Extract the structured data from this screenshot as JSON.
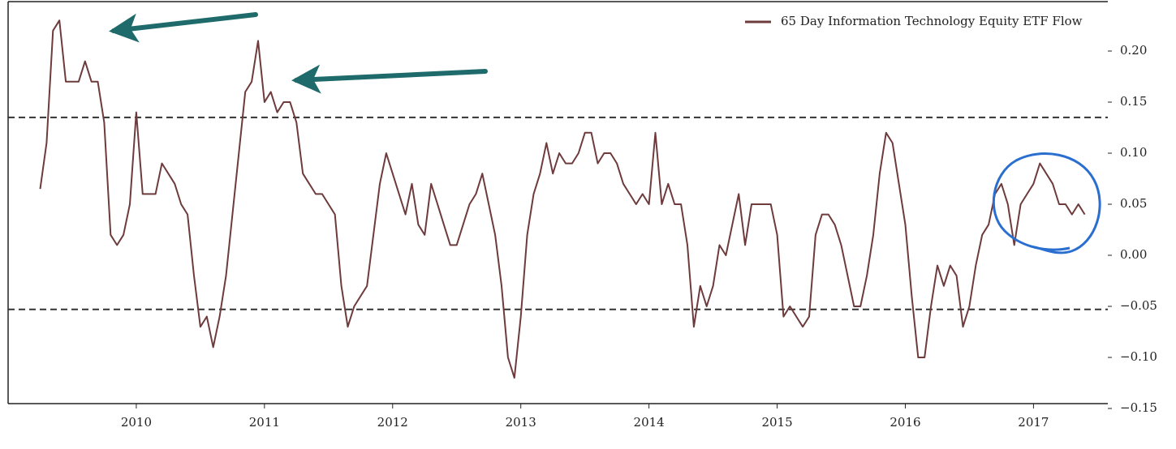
{
  "chart_data": {
    "type": "line",
    "xlim": [
      2009.0,
      2017.58
    ],
    "xticks": [
      2010,
      2011,
      2012,
      2013,
      2014,
      2015,
      2016,
      2017
    ],
    "ylim": [
      -0.15,
      0.25
    ],
    "yticks": [
      {
        "value": -0.15,
        "label": "−0.15"
      },
      {
        "value": -0.1,
        "label": "−0.10"
      },
      {
        "value": -0.05,
        "label": "−0.05"
      },
      {
        "value": 0,
        "label": "0.00"
      },
      {
        "value": 0.05,
        "label": "0.05"
      },
      {
        "value": 0.1,
        "label": "0.10"
      },
      {
        "value": 0.15,
        "label": "0.15"
      },
      {
        "value": 0.2,
        "label": "0.20"
      }
    ],
    "hlines": [
      0.135,
      -0.053
    ],
    "legend": "upper right",
    "series": [
      {
        "name": "65 Day Information Technology Equity ETF Flow",
        "color": "#6e3b3d",
        "x": [
          2009.25,
          2009.3,
          2009.35,
          2009.4,
          2009.45,
          2009.5,
          2009.55,
          2009.6,
          2009.65,
          2009.7,
          2009.75,
          2009.8,
          2009.85,
          2009.9,
          2009.95,
          2010.0,
          2010.05,
          2010.1,
          2010.15,
          2010.2,
          2010.25,
          2010.3,
          2010.35,
          2010.4,
          2010.45,
          2010.5,
          2010.55,
          2010.6,
          2010.65,
          2010.7,
          2010.75,
          2010.8,
          2010.85,
          2010.9,
          2010.95,
          2011.0,
          2011.05,
          2011.1,
          2011.15,
          2011.2,
          2011.25,
          2011.3,
          2011.35,
          2011.4,
          2011.45,
          2011.5,
          2011.55,
          2011.6,
          2011.65,
          2011.7,
          2011.75,
          2011.8,
          2011.85,
          2011.9,
          2011.95,
          2012.0,
          2012.05,
          2012.1,
          2012.15,
          2012.2,
          2012.25,
          2012.3,
          2012.35,
          2012.4,
          2012.45,
          2012.5,
          2012.55,
          2012.6,
          2012.65,
          2012.7,
          2012.75,
          2012.8,
          2012.85,
          2012.9,
          2012.95,
          2013.0,
          2013.05,
          2013.1,
          2013.15,
          2013.2,
          2013.25,
          2013.3,
          2013.35,
          2013.4,
          2013.45,
          2013.5,
          2013.55,
          2013.6,
          2013.65,
          2013.7,
          2013.75,
          2013.8,
          2013.85,
          2013.9,
          2013.95,
          2014.0,
          2014.05,
          2014.1,
          2014.15,
          2014.2,
          2014.25,
          2014.3,
          2014.35,
          2014.4,
          2014.45,
          2014.5,
          2014.55,
          2014.6,
          2014.65,
          2014.7,
          2014.75,
          2014.8,
          2014.85,
          2014.9,
          2014.95,
          2015.0,
          2015.05,
          2015.1,
          2015.15,
          2015.2,
          2015.25,
          2015.3,
          2015.35,
          2015.4,
          2015.45,
          2015.5,
          2015.55,
          2015.6,
          2015.65,
          2015.7,
          2015.75,
          2015.8,
          2015.85,
          2015.9,
          2015.95,
          2016.0,
          2016.05,
          2016.1,
          2016.15,
          2016.2,
          2016.25,
          2016.3,
          2016.35,
          2016.4,
          2016.45,
          2016.5,
          2016.55,
          2016.6,
          2016.65,
          2016.7,
          2016.75,
          2016.8,
          2016.85,
          2016.9,
          2016.95,
          2017.0,
          2017.05,
          2017.1,
          2017.15,
          2017.2,
          2017.25,
          2017.3,
          2017.35,
          2017.4
        ],
        "values": [
          0.065,
          0.11,
          0.22,
          0.23,
          0.17,
          0.17,
          0.17,
          0.19,
          0.17,
          0.17,
          0.13,
          0.02,
          0.01,
          0.02,
          0.05,
          0.14,
          0.06,
          0.06,
          0.06,
          0.09,
          0.08,
          0.07,
          0.05,
          0.04,
          -0.02,
          -0.07,
          -0.06,
          -0.09,
          -0.06,
          -0.02,
          0.04,
          0.1,
          0.16,
          0.17,
          0.21,
          0.15,
          0.16,
          0.14,
          0.15,
          0.15,
          0.13,
          0.08,
          0.07,
          0.06,
          0.06,
          0.05,
          0.04,
          -0.03,
          -0.07,
          -0.05,
          -0.04,
          -0.03,
          0.02,
          0.07,
          0.1,
          0.08,
          0.06,
          0.04,
          0.07,
          0.03,
          0.02,
          0.07,
          0.05,
          0.03,
          0.01,
          0.01,
          0.03,
          0.05,
          0.06,
          0.08,
          0.05,
          0.02,
          -0.03,
          -0.1,
          -0.12,
          -0.06,
          0.02,
          0.06,
          0.08,
          0.11,
          0.08,
          0.1,
          0.09,
          0.09,
          0.1,
          0.12,
          0.12,
          0.09,
          0.1,
          0.1,
          0.09,
          0.07,
          0.06,
          0.05,
          0.06,
          0.05,
          0.12,
          0.05,
          0.07,
          0.05,
          0.05,
          0.01,
          -0.07,
          -0.03,
          -0.05,
          -0.03,
          0.01,
          0.0,
          0.03,
          0.06,
          0.01,
          0.05,
          0.05,
          0.05,
          0.05,
          0.02,
          -0.06,
          -0.05,
          -0.06,
          -0.07,
          -0.06,
          0.02,
          0.04,
          0.04,
          0.03,
          0.01,
          -0.02,
          -0.05,
          -0.05,
          -0.02,
          0.02,
          0.08,
          0.12,
          0.11,
          0.07,
          0.03,
          -0.04,
          -0.1,
          -0.1,
          -0.05,
          -0.01,
          -0.03,
          -0.01,
          -0.02,
          -0.07,
          -0.05,
          -0.01,
          0.02,
          0.03,
          0.06,
          0.07,
          0.05,
          0.01,
          0.05,
          0.06,
          0.07,
          0.09,
          0.08,
          0.07,
          0.05,
          0.05,
          0.04,
          0.05,
          0.04
        ]
      }
    ]
  }
}
